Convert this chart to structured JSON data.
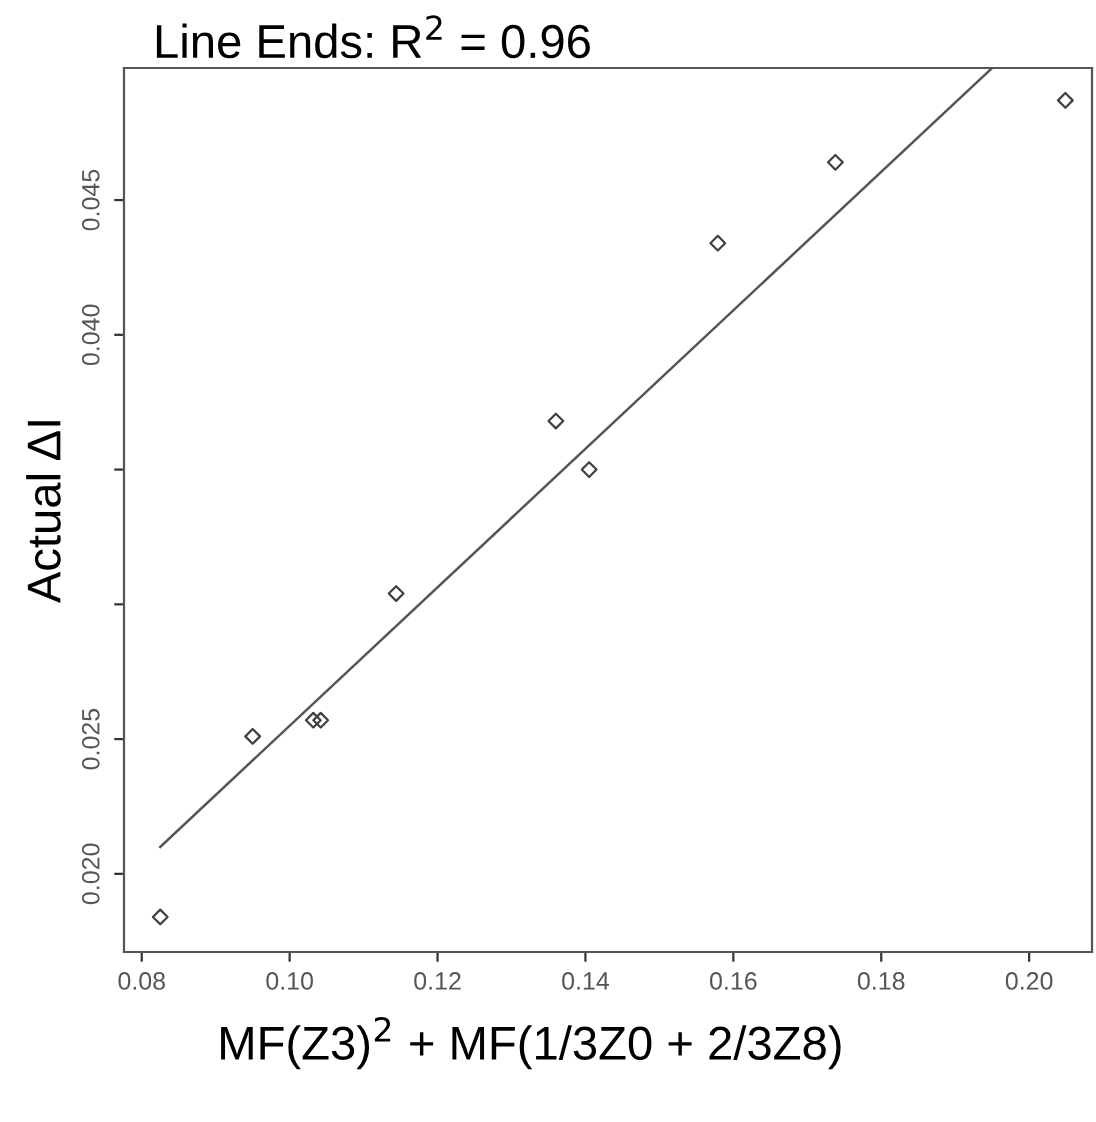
{
  "chart_data": {
    "type": "scatter",
    "title": "Line Ends: R$^{2}$ = 0.96",
    "xlabel": "MF(Z3)$^{2}$ + MF(1/3Z0 + 2/3Z8)",
    "ylabel": "Actual ΔI",
    "series": [
      {
        "color": "#404040",
        "marker": "diamond",
        "x": [
          0.0825,
          0.095,
          0.1032,
          0.1042,
          0.1144,
          0.136,
          0.1405,
          0.1579,
          0.1738,
          0.2049
        ],
        "values": [
          0.0184,
          0.0251,
          0.0257,
          0.0257,
          0.0304,
          0.0368,
          0.035,
          0.0434,
          0.0464,
          0.0487
        ]
      },
      {
        "type": "line",
        "color": "#555555",
        "marker": "none",
        "line_style": "solid",
        "x": [
          0.0825,
          0.195
        ],
        "values": [
          0.021,
          0.0499
        ]
      }
    ],
    "xlim": [
      0.0776,
      0.2085
    ],
    "ylim": [
      0.0171,
      0.0499
    ],
    "xticks": [
      {
        "value": 0.08,
        "label": "0.08"
      },
      {
        "value": 0.1,
        "label": "0.10"
      },
      {
        "value": 0.12,
        "label": "0.12"
      },
      {
        "value": 0.14,
        "label": "0.14"
      },
      {
        "value": 0.16,
        "label": "0.16"
      },
      {
        "value": 0.18,
        "label": "0.18"
      },
      {
        "value": 0.2,
        "label": "0.20"
      }
    ],
    "yticks": [
      {
        "value": 0.02,
        "label": "0.020"
      },
      {
        "value": 0.025,
        "label": "0.025"
      },
      {
        "value": 0.03,
        "label": null
      },
      {
        "value": 0.035,
        "label": null
      },
      {
        "value": 0.04,
        "label": "0.040"
      },
      {
        "value": 0.045,
        "label": "0.045"
      }
    ],
    "grid": false,
    "legend": false
  }
}
